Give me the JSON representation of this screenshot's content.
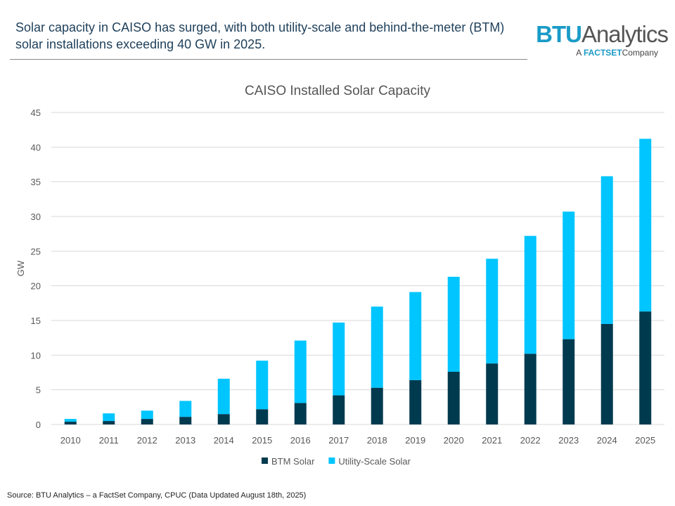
{
  "headline": "Solar capacity in CAISO has surged, with both utility-scale and behind-the-meter (BTM) solar installations exceeding 40 GW in 2025.",
  "logo": {
    "brand": "BTU",
    "brand2": "Analytics",
    "tagline_a": "A",
    "tagline_b": "FACTSET",
    "tagline_c": "Company"
  },
  "source": "Source: BTU Analytics – a FactSet Company, CPUC (Data Updated August 18th, 2025)",
  "chart_data": {
    "type": "bar",
    "stacked": true,
    "title": "CAISO Installed Solar Capacity",
    "xlabel": "",
    "ylabel": "GW",
    "ylim": [
      0,
      45
    ],
    "yticks": [
      0,
      5,
      10,
      15,
      20,
      25,
      30,
      35,
      40,
      45
    ],
    "grid": true,
    "legend": "bottom",
    "categories": [
      "2010",
      "2011",
      "2012",
      "2013",
      "2014",
      "2015",
      "2016",
      "2017",
      "2018",
      "2019",
      "2020",
      "2021",
      "2022",
      "2023",
      "2024",
      "2025"
    ],
    "series": [
      {
        "name": "BTM Solar",
        "color": "#003a4f",
        "values": [
          0.4,
          0.5,
          0.8,
          1.1,
          1.5,
          2.2,
          3.1,
          4.2,
          5.3,
          6.4,
          7.6,
          8.8,
          10.2,
          12.3,
          14.5,
          16.3
        ]
      },
      {
        "name": "Utility-Scale Solar",
        "color": "#00c5ff",
        "values": [
          0.4,
          1.1,
          1.2,
          2.3,
          5.1,
          7.0,
          9.0,
          10.5,
          11.7,
          12.7,
          13.7,
          15.1,
          17.0,
          18.4,
          21.3,
          24.9
        ]
      }
    ]
  }
}
